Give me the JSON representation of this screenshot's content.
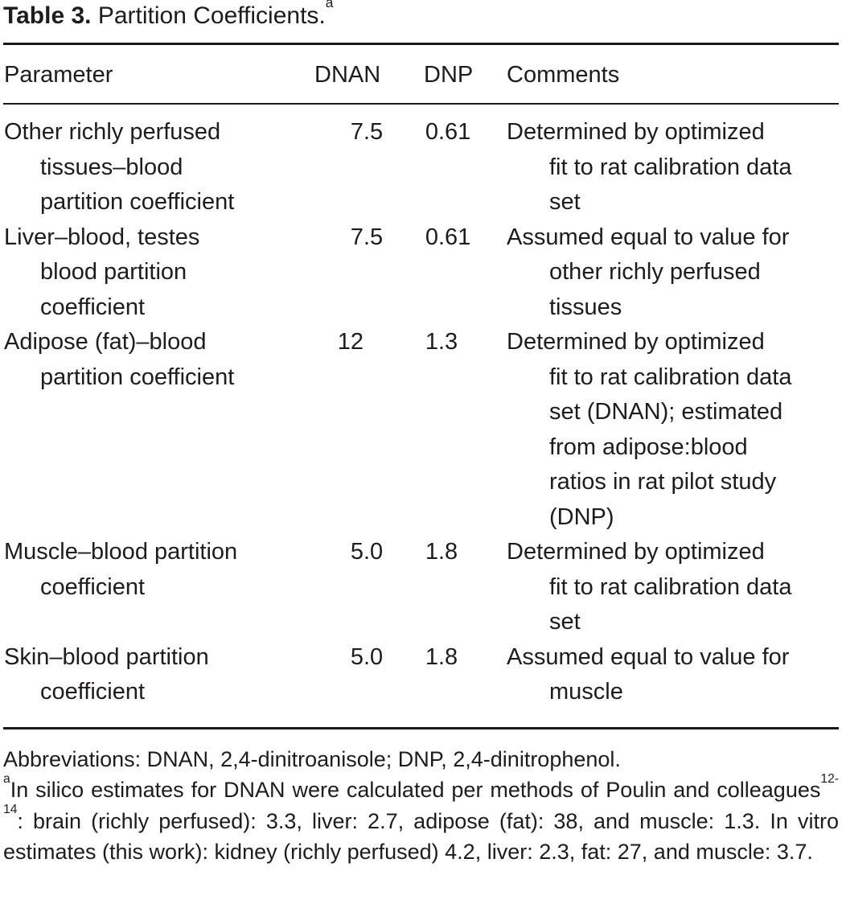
{
  "title": {
    "label": "Table 3.",
    "text": "Partition Coefficients.",
    "footnote_marker": "a"
  },
  "table": {
    "headers": {
      "parameter": "Parameter",
      "dnan": "DNAN",
      "dnp": "DNP",
      "comments": "Comments"
    },
    "rows": [
      {
        "parameter": [
          "Other richly perfused",
          "tissues–blood",
          "partition coefficient"
        ],
        "dnan": "7.5",
        "dnp": "0.61",
        "comments": [
          "Determined by optimized",
          "fit to rat calibration data",
          "set"
        ]
      },
      {
        "parameter": [
          "Liver–blood, testes",
          "blood partition",
          "coefficient"
        ],
        "dnan": "7.5",
        "dnp": "0.61",
        "comments": [
          "Assumed equal to value for",
          "other richly perfused",
          "tissues"
        ]
      },
      {
        "parameter": [
          "Adipose (fat)–blood",
          "partition coefficient"
        ],
        "dnan": "12",
        "dnp": "1.3",
        "comments": [
          "Determined by optimized",
          "fit to rat calibration data",
          "set (DNAN); estimated",
          "from adipose:blood",
          "ratios in rat pilot study",
          "(DNP)"
        ]
      },
      {
        "parameter": [
          "Muscle–blood partition",
          "coefficient"
        ],
        "dnan": "5.0",
        "dnp": "1.8",
        "comments": [
          "Determined by optimized",
          "fit to rat calibration data",
          "set"
        ]
      },
      {
        "parameter": [
          "Skin–blood partition",
          "coefficient"
        ],
        "dnan": "5.0",
        "dnp": "1.8",
        "comments": [
          "Assumed equal to value for",
          "muscle"
        ]
      }
    ]
  },
  "footnotes": {
    "abbreviations": "Abbreviations: DNAN, 2,4-dinitroanisole; DNP, 2,4-dinitrophenol.",
    "note_a_marker": "a",
    "note_a_part1": "In silico estimates for DNAN were calculated per methods of Poulin and colleagues",
    "note_a_ref": "12-14",
    "note_a_part2": ": brain (richly perfused): 3.3, liver: 2.7, adipose (fat): 38, and muscle: 1.3. In vitro estimates (this work): kidney (richly perfused) 4.2, liver: 2.3, fat: 27, and muscle: 3.7."
  },
  "colors": {
    "text": "#1e1c1d",
    "rule": "#1a1a1a",
    "background": "#ffffff"
  }
}
